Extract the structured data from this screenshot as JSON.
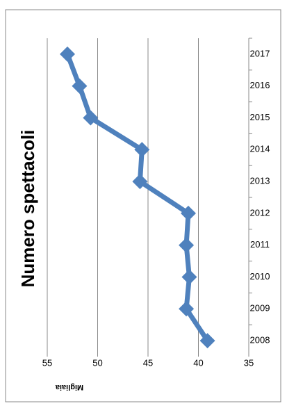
{
  "chart_data": {
    "type": "line",
    "title": "Numero spettacoli",
    "y_label": "Migliaia",
    "categories": [
      "2008",
      "2009",
      "2010",
      "2011",
      "2012",
      "2013",
      "2014",
      "2015",
      "2016",
      "2017"
    ],
    "values": [
      39.1,
      41.2,
      40.9,
      41.2,
      41.0,
      45.8,
      45.6,
      50.7,
      51.8,
      53.0
    ],
    "color": "#4f81bd",
    "ylim": [
      35,
      55
    ],
    "yticks": [
      35,
      40,
      45,
      50,
      55
    ],
    "grid": true
  }
}
